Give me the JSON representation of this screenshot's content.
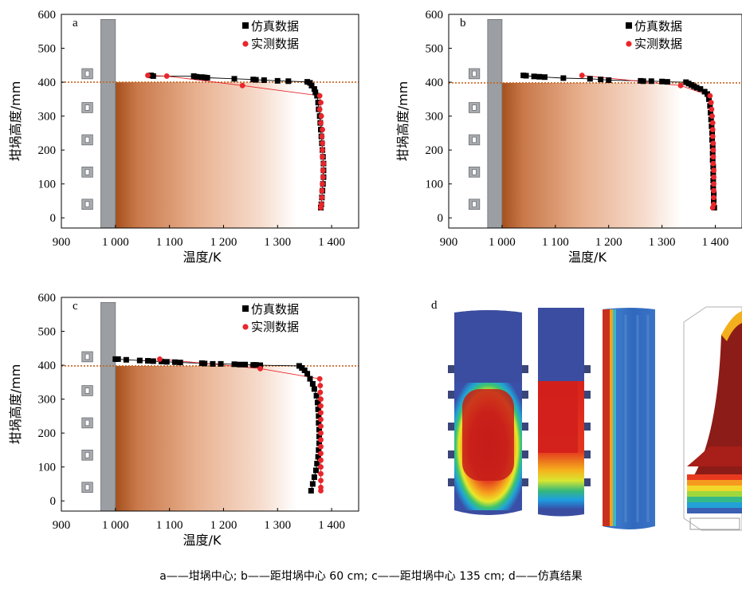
{
  "caption": "a——坩埚中心; b——距坩埚中心 60 cm; c——距坩埚中心 135 cm; d——仿真结果",
  "colors": {
    "simulation": "#000000",
    "measured": "#e8262b",
    "melt_line": "#c8641e",
    "wall": "#9b9ea2",
    "gradient_hot": "#b35a28",
    "gradient_cold": "#ffffff"
  },
  "chart_data": [
    {
      "panel": "a",
      "type": "scatter",
      "xlabel": "温度/K",
      "ylabel": "坩埚高度/mm",
      "xlim": [
        900,
        1450
      ],
      "ylim": [
        -30,
        600
      ],
      "xticks": [
        "900",
        "1 000",
        "1 100",
        "1 200",
        "1 300",
        "1 400"
      ],
      "xtick_values": [
        900,
        1000,
        1100,
        1200,
        1300,
        1400
      ],
      "yticks": [
        "0",
        "100",
        "200",
        "300",
        "400",
        "500",
        "600"
      ],
      "ytick_values": [
        0,
        100,
        200,
        300,
        400,
        500,
        600
      ],
      "melt_height": 400,
      "series": [
        {
          "name": "仿真数据",
          "marker": "square",
          "points": [
            [
              1066,
              420
            ],
            [
              1070,
              418
            ],
            [
              1145,
              418
            ],
            [
              1150,
              416
            ],
            [
              1160,
              415
            ],
            [
              1165,
              414
            ],
            [
              1170,
              413
            ],
            [
              1220,
              410
            ],
            [
              1255,
              408
            ],
            [
              1260,
              407
            ],
            [
              1275,
              406
            ],
            [
              1300,
              404
            ],
            [
              1320,
              403
            ],
            [
              1355,
              401
            ],
            [
              1360,
              398
            ],
            [
              1363,
              390
            ],
            [
              1368,
              380
            ],
            [
              1370,
              370
            ],
            [
              1373,
              360
            ],
            [
              1375,
              340
            ],
            [
              1376,
              320
            ],
            [
              1378,
              300
            ],
            [
              1379,
              280
            ],
            [
              1380,
              260
            ],
            [
              1381,
              240
            ],
            [
              1382,
              220
            ],
            [
              1383,
              200
            ],
            [
              1384,
              180
            ],
            [
              1385,
              160
            ],
            [
              1385,
              140
            ],
            [
              1385,
              120
            ],
            [
              1384,
              100
            ],
            [
              1383,
              80
            ],
            [
              1382,
              60
            ],
            [
              1381,
              40
            ],
            [
              1380,
              30
            ]
          ]
        },
        {
          "name": "实测数据",
          "marker": "circle",
          "points": [
            [
              1060,
              420
            ],
            [
              1095,
              418
            ],
            [
              1235,
              390
            ],
            [
              1378,
              360
            ],
            [
              1380,
              340
            ],
            [
              1378,
              320
            ],
            [
              1381,
              300
            ],
            [
              1380,
              280
            ],
            [
              1383,
              260
            ],
            [
              1382,
              240
            ],
            [
              1383,
              220
            ],
            [
              1383,
              200
            ],
            [
              1383,
              180
            ],
            [
              1385,
              160
            ],
            [
              1384,
              140
            ],
            [
              1384,
              120
            ],
            [
              1383,
              100
            ],
            [
              1382,
              80
            ],
            [
              1382,
              60
            ],
            [
              1381,
              40
            ],
            [
              1380,
              30
            ]
          ]
        }
      ]
    },
    {
      "panel": "b",
      "type": "scatter",
      "xlabel": "温度/K",
      "ylabel": "坩埚高度/mm",
      "xlim": [
        900,
        1450
      ],
      "ylim": [
        -30,
        600
      ],
      "xticks": [
        "900",
        "1 000",
        "1 100",
        "1 200",
        "1 300",
        "1 400"
      ],
      "xtick_values": [
        900,
        1000,
        1100,
        1200,
        1300,
        1400
      ],
      "yticks": [
        "0",
        "100",
        "200",
        "300",
        "400",
        "500",
        "600"
      ],
      "ytick_values": [
        0,
        100,
        200,
        300,
        400,
        500,
        600
      ],
      "melt_height": 398,
      "series": [
        {
          "name": "仿真数据",
          "marker": "square",
          "points": [
            [
              1040,
              420
            ],
            [
              1045,
              419
            ],
            [
              1060,
              417
            ],
            [
              1070,
              416
            ],
            [
              1080,
              415
            ],
            [
              1115,
              412
            ],
            [
              1165,
              410
            ],
            [
              1185,
              408
            ],
            [
              1200,
              406
            ],
            [
              1260,
              404
            ],
            [
              1265,
              403
            ],
            [
              1280,
              403
            ],
            [
              1300,
              402
            ],
            [
              1310,
              401
            ],
            [
              1345,
              400
            ],
            [
              1350,
              396
            ],
            [
              1355,
              392
            ],
            [
              1360,
              388
            ],
            [
              1365,
              384
            ],
            [
              1372,
              380
            ],
            [
              1380,
              372
            ],
            [
              1385,
              365
            ],
            [
              1388,
              350
            ],
            [
              1390,
              330
            ],
            [
              1391,
              310
            ],
            [
              1392,
              290
            ],
            [
              1393,
              270
            ],
            [
              1394,
              250
            ],
            [
              1394,
              230
            ],
            [
              1395,
              210
            ],
            [
              1395,
              190
            ],
            [
              1395,
              170
            ],
            [
              1396,
              150
            ],
            [
              1396,
              130
            ],
            [
              1396,
              110
            ],
            [
              1396,
              90
            ],
            [
              1397,
              70
            ],
            [
              1397,
              50
            ],
            [
              1398,
              30
            ]
          ]
        },
        {
          "name": "实测数据",
          "marker": "circle",
          "points": [
            [
              1150,
              420
            ],
            [
              1335,
              390
            ],
            [
              1390,
              360
            ],
            [
              1392,
              340
            ],
            [
              1393,
              320
            ],
            [
              1394,
              300
            ],
            [
              1395,
              280
            ],
            [
              1395,
              260
            ],
            [
              1395,
              240
            ],
            [
              1396,
              220
            ],
            [
              1396,
              200
            ],
            [
              1396,
              180
            ],
            [
              1396,
              160
            ],
            [
              1397,
              140
            ],
            [
              1397,
              120
            ],
            [
              1397,
              100
            ],
            [
              1397,
              80
            ],
            [
              1397,
              60
            ],
            [
              1397,
              40
            ],
            [
              1395,
              30
            ]
          ]
        }
      ]
    },
    {
      "panel": "c",
      "type": "scatter",
      "xlabel": "温度/K",
      "ylabel": "坩埚高度/mm",
      "xlim": [
        900,
        1450
      ],
      "ylim": [
        -30,
        600
      ],
      "xticks": [
        "900",
        "1 000",
        "1 100",
        "1 200",
        "1 300",
        "1 400"
      ],
      "xtick_values": [
        900,
        1000,
        1100,
        1200,
        1300,
        1400
      ],
      "yticks": [
        "0",
        "100",
        "200",
        "300",
        "400",
        "500",
        "600"
      ],
      "ytick_values": [
        0,
        100,
        200,
        300,
        400,
        500,
        600
      ],
      "melt_height": 398,
      "series": [
        {
          "name": "仿真数据",
          "marker": "square",
          "points": [
            [
              1000,
              418
            ],
            [
              1005,
              418
            ],
            [
              1020,
              416
            ],
            [
              1045,
              414
            ],
            [
              1060,
              413
            ],
            [
              1070,
              412
            ],
            [
              1085,
              411
            ],
            [
              1095,
              410
            ],
            [
              1110,
              409
            ],
            [
              1120,
              408
            ],
            [
              1160,
              406
            ],
            [
              1165,
              405
            ],
            [
              1180,
              404
            ],
            [
              1195,
              404
            ],
            [
              1220,
              403
            ],
            [
              1230,
              402
            ],
            [
              1240,
              402
            ],
            [
              1255,
              401
            ],
            [
              1260,
              401
            ],
            [
              1268,
              400
            ],
            [
              1340,
              398
            ],
            [
              1345,
              392
            ],
            [
              1350,
              385
            ],
            [
              1355,
              375
            ],
            [
              1360,
              360
            ],
            [
              1365,
              345
            ],
            [
              1368,
              330
            ],
            [
              1372,
              310
            ],
            [
              1374,
              290
            ],
            [
              1375,
              270
            ],
            [
              1376,
              250
            ],
            [
              1376,
              230
            ],
            [
              1377,
              210
            ],
            [
              1377,
              190
            ],
            [
              1377,
              170
            ],
            [
              1376,
              150
            ],
            [
              1375,
              130
            ],
            [
              1373,
              110
            ],
            [
              1371,
              90
            ],
            [
              1368,
              70
            ],
            [
              1365,
              50
            ],
            [
              1362,
              30
            ]
          ]
        },
        {
          "name": "实测数据",
          "marker": "circle",
          "points": [
            [
              1082,
              418
            ],
            [
              1268,
              390
            ],
            [
              1378,
              360
            ],
            [
              1379,
              340
            ],
            [
              1379,
              320
            ],
            [
              1380,
              300
            ],
            [
              1380,
              280
            ],
            [
              1380,
              260
            ],
            [
              1380,
              240
            ],
            [
              1380,
              220
            ],
            [
              1380,
              200
            ],
            [
              1380,
              180
            ],
            [
              1380,
              160
            ],
            [
              1380,
              140
            ],
            [
              1380,
              120
            ],
            [
              1380,
              100
            ],
            [
              1380,
              80
            ],
            [
              1380,
              60
            ],
            [
              1380,
              40
            ],
            [
              1380,
              30
            ]
          ]
        }
      ]
    }
  ],
  "panel_d": {
    "label": "d"
  }
}
